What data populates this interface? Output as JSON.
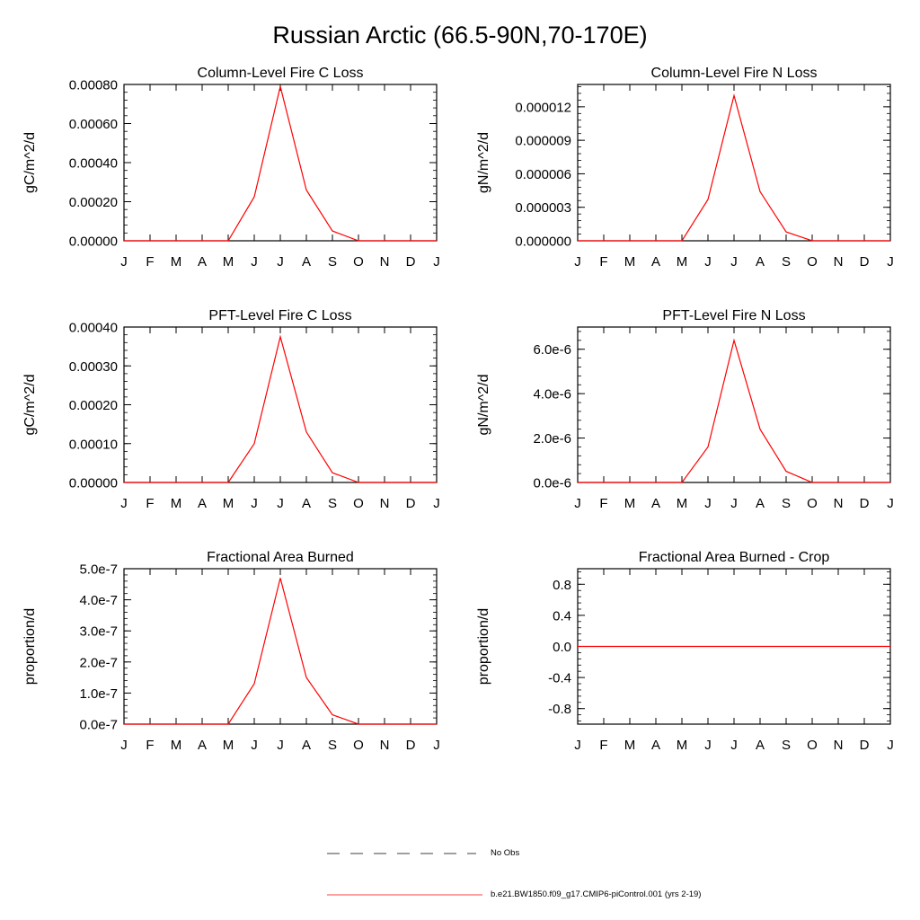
{
  "figure": {
    "title": "Russian Arctic (66.5-90N,70-170E)",
    "line_color": "#ff0000"
  },
  "legend": [
    {
      "label": "No Obs",
      "style": "dashed",
      "color": "#000000"
    },
    {
      "label": "b.e21.BW1850.f09_g17.CMIP6-piControl.001 (yrs 2-19)",
      "style": "solid",
      "color": "#ff0000"
    }
  ],
  "chart_data": [
    {
      "type": "line",
      "title": "Column-Level Fire C Loss",
      "ylabel": "gC/m^2/d",
      "categories": [
        "J",
        "F",
        "M",
        "A",
        "M",
        "J",
        "J",
        "A",
        "S",
        "O",
        "N",
        "D",
        "J"
      ],
      "ylim": [
        0,
        0.0008
      ],
      "yticks": [
        0,
        0.0002,
        0.0004,
        0.0006,
        0.0008
      ],
      "ytick_labels": [
        "0.00000",
        "0.00020",
        "0.00040",
        "0.00060",
        "0.00080"
      ],
      "series": [
        {
          "values": [
            0,
            0,
            0,
            0,
            0,
            0.000225,
            0.00079,
            0.00026,
            5e-05,
            0,
            0,
            0,
            0
          ]
        }
      ]
    },
    {
      "type": "line",
      "title": "Column-Level Fire N Loss",
      "ylabel": "gN/m^2/d",
      "categories": [
        "J",
        "F",
        "M",
        "A",
        "M",
        "J",
        "J",
        "A",
        "S",
        "O",
        "N",
        "D",
        "J"
      ],
      "ylim": [
        0,
        1.4e-05
      ],
      "yticks": [
        0,
        3e-06,
        6e-06,
        9e-06,
        1.2e-05
      ],
      "ytick_labels": [
        "0.000000",
        "0.000003",
        "0.000006",
        "0.000009",
        "0.000012"
      ],
      "series": [
        {
          "values": [
            0,
            0,
            0,
            0,
            0,
            3.7e-06,
            1.3e-05,
            4.4e-06,
            8e-07,
            0,
            0,
            0,
            0
          ]
        }
      ]
    },
    {
      "type": "line",
      "title": "PFT-Level Fire C Loss",
      "ylabel": "gC/m^2/d",
      "categories": [
        "J",
        "F",
        "M",
        "A",
        "M",
        "J",
        "J",
        "A",
        "S",
        "O",
        "N",
        "D",
        "J"
      ],
      "ylim": [
        0,
        0.0004
      ],
      "yticks": [
        0,
        0.0001,
        0.0002,
        0.0003,
        0.0004
      ],
      "ytick_labels": [
        "0.00000",
        "0.00010",
        "0.00020",
        "0.00030",
        "0.00040"
      ],
      "series": [
        {
          "values": [
            0,
            0,
            0,
            0,
            0,
            0.0001,
            0.000375,
            0.00013,
            2.5e-05,
            0,
            0,
            0,
            0
          ]
        }
      ]
    },
    {
      "type": "line",
      "title": "PFT-Level Fire N Loss",
      "ylabel": "gN/m^2/d",
      "categories": [
        "J",
        "F",
        "M",
        "A",
        "M",
        "J",
        "J",
        "A",
        "S",
        "O",
        "N",
        "D",
        "J"
      ],
      "ylim": [
        0,
        7e-06
      ],
      "yticks": [
        0,
        2e-06,
        4e-06,
        6e-06
      ],
      "ytick_labels": [
        "0.0e-6",
        "2.0e-6",
        "4.0e-6",
        "6.0e-6"
      ],
      "series": [
        {
          "values": [
            0,
            0,
            0,
            0,
            0,
            1.6e-06,
            6.4e-06,
            2.4e-06,
            5e-07,
            0,
            0,
            0,
            0
          ]
        }
      ]
    },
    {
      "type": "line",
      "title": "Fractional Area Burned",
      "ylabel": "proportion/d",
      "categories": [
        "J",
        "F",
        "M",
        "A",
        "M",
        "J",
        "J",
        "A",
        "S",
        "O",
        "N",
        "D",
        "J"
      ],
      "ylim": [
        0,
        5e-07
      ],
      "yticks": [
        0,
        1e-07,
        2e-07,
        3e-07,
        4e-07,
        5e-07
      ],
      "ytick_labels": [
        "0.0e-7",
        "1.0e-7",
        "2.0e-7",
        "3.0e-7",
        "4.0e-7",
        "5.0e-7"
      ],
      "series": [
        {
          "values": [
            0,
            0,
            0,
            0,
            0,
            1.3e-07,
            4.7e-07,
            1.5e-07,
            3e-08,
            0,
            0,
            0,
            0
          ]
        }
      ]
    },
    {
      "type": "line",
      "title": "Fractional Area Burned - Crop",
      "ylabel": "proportion/d",
      "categories": [
        "J",
        "F",
        "M",
        "A",
        "M",
        "J",
        "J",
        "A",
        "S",
        "O",
        "N",
        "D",
        "J"
      ],
      "ylim": [
        -1,
        1
      ],
      "yticks": [
        -0.8,
        -0.4,
        0,
        0.4,
        0.8
      ],
      "ytick_labels": [
        "-0.8",
        "-0.4",
        "0.0",
        "0.4",
        "0.8"
      ],
      "series": [
        {
          "values": [
            0,
            0,
            0,
            0,
            0,
            0,
            0,
            0,
            0,
            0,
            0,
            0,
            0
          ]
        }
      ]
    }
  ]
}
